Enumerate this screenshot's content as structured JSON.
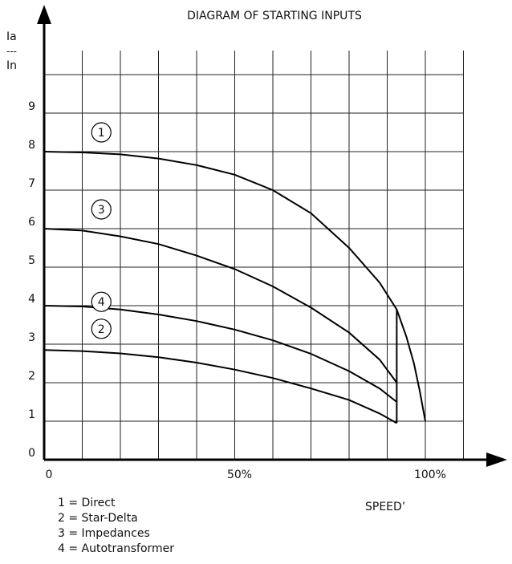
{
  "chart_data": {
    "type": "line",
    "title": "DIAGRAM OF STARTING INPUTS",
    "ylabel_parts": [
      "Ia",
      "---",
      "In"
    ],
    "xlabel": "SPEED’",
    "xlim": [
      0,
      100
    ],
    "ylim": [
      0,
      10
    ],
    "x_tick_labels": [
      {
        "x": 0,
        "label": "0"
      },
      {
        "x": 50,
        "label": "50%"
      },
      {
        "x": 100,
        "label": "100%"
      }
    ],
    "y_tick_labels": [
      {
        "y": 0,
        "label": "0"
      },
      {
        "y": 1,
        "label": "1"
      },
      {
        "y": 2,
        "label": "2"
      },
      {
        "y": 3,
        "label": "3"
      },
      {
        "y": 4,
        "label": "4"
      },
      {
        "y": 5,
        "label": "5"
      },
      {
        "y": 6,
        "label": "6"
      },
      {
        "y": 7,
        "label": "7"
      },
      {
        "y": 8,
        "label": "8"
      },
      {
        "y": 9,
        "label": "9"
      }
    ],
    "grid": true,
    "x_grid_step": 10,
    "y_grid_step": 1,
    "series": [
      {
        "name": "1",
        "x": [
          0,
          10,
          20,
          30,
          40,
          50,
          60,
          70,
          80,
          88,
          92.5,
          95,
          97,
          98.5,
          100
        ],
        "y": [
          8,
          7.98,
          7.93,
          7.82,
          7.65,
          7.4,
          7.0,
          6.4,
          5.5,
          4.6,
          3.9,
          3.2,
          2.5,
          1.8,
          1.0
        ]
      },
      {
        "name": "3",
        "x": [
          0,
          10,
          20,
          30,
          40,
          50,
          60,
          70,
          80,
          88,
          92.5
        ],
        "y": [
          6,
          5.95,
          5.8,
          5.6,
          5.3,
          4.95,
          4.5,
          3.95,
          3.3,
          2.6,
          2.0
        ]
      },
      {
        "name": "4",
        "x": [
          0,
          10,
          20,
          30,
          40,
          50,
          60,
          70,
          80,
          88,
          92.5
        ],
        "y": [
          4,
          3.98,
          3.9,
          3.77,
          3.6,
          3.38,
          3.1,
          2.75,
          2.3,
          1.85,
          1.5
        ]
      },
      {
        "name": "2",
        "x": [
          0,
          10,
          20,
          30,
          40,
          50,
          60,
          70,
          80,
          88,
          92.5
        ],
        "y": [
          2.85,
          2.82,
          2.76,
          2.66,
          2.52,
          2.34,
          2.12,
          1.85,
          1.55,
          1.2,
          0.95
        ]
      }
    ],
    "drop_line": {
      "x": 92.5,
      "y": [
        3.9,
        0.95
      ]
    },
    "markers": [
      {
        "label": "1",
        "x": 15,
        "y": 8.5
      },
      {
        "label": "3",
        "x": 15,
        "y": 6.5
      },
      {
        "label": "4",
        "x": 15,
        "y": 4.1
      },
      {
        "label": "2",
        "x": 15,
        "y": 3.4
      }
    ],
    "legend": [
      {
        "text": "1 = Direct"
      },
      {
        "text": "2 = Star-Delta"
      },
      {
        "text": "3 = Impedances"
      },
      {
        "text": "4 = Autotransformer"
      }
    ]
  }
}
